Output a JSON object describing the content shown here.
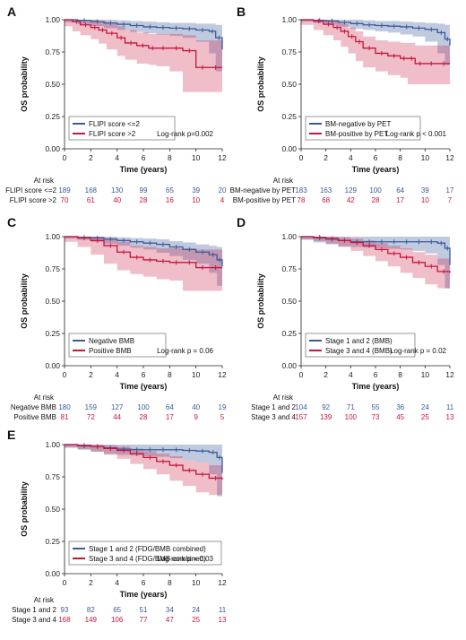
{
  "chart_data": [
    {
      "panel": "A",
      "type": "line",
      "xlabel": "Time (years)",
      "ylabel": "OS probability",
      "xlim": [
        0,
        12
      ],
      "ylim": [
        0,
        1.0
      ],
      "xticks": [
        "0",
        "2",
        "4",
        "6",
        "8",
        "10",
        "12"
      ],
      "yticks": [
        "0.00",
        "0.25",
        "0.50",
        "0.75",
        "1.00"
      ],
      "legend_placement": "bottom-left",
      "annotation": "Log-rank p=0.002",
      "series": [
        {
          "name": "FLIPI score <=2",
          "color": "#3b5a9a",
          "x": [
            0,
            1.0,
            2.0,
            3.0,
            4.0,
            5.0,
            6.0,
            7.0,
            8.0,
            9.0,
            10.0,
            11.0,
            11.5,
            12.0
          ],
          "y": [
            1.0,
            0.995,
            0.985,
            0.975,
            0.965,
            0.955,
            0.945,
            0.94,
            0.935,
            0.93,
            0.92,
            0.91,
            0.86,
            0.77
          ],
          "lower": [
            1.0,
            0.98,
            0.965,
            0.95,
            0.935,
            0.92,
            0.905,
            0.895,
            0.885,
            0.875,
            0.86,
            0.83,
            0.74,
            0.6
          ],
          "upper": [
            1.0,
            1.0,
            1.0,
            1.0,
            0.995,
            0.99,
            0.985,
            0.98,
            0.975,
            0.975,
            0.97,
            0.97,
            0.96,
            0.94
          ]
        },
        {
          "name": "FLIPI score >2",
          "color": "#c8143c",
          "x": [
            0,
            0.6,
            1.2,
            2.0,
            2.6,
            3.2,
            4.0,
            4.6,
            5.5,
            6.4,
            7.0,
            8.0,
            9.0,
            10.0,
            11.0,
            12.0
          ],
          "y": [
            1.0,
            0.985,
            0.96,
            0.94,
            0.92,
            0.895,
            0.86,
            0.82,
            0.8,
            0.78,
            0.78,
            0.78,
            0.76,
            0.63,
            0.63,
            0.63
          ],
          "lower": [
            1.0,
            0.95,
            0.91,
            0.88,
            0.85,
            0.815,
            0.77,
            0.72,
            0.69,
            0.66,
            0.65,
            0.64,
            0.6,
            0.44,
            0.44,
            0.44
          ],
          "upper": [
            1.0,
            1.0,
            1.0,
            1.0,
            0.99,
            0.975,
            0.95,
            0.92,
            0.9,
            0.89,
            0.89,
            0.89,
            0.88,
            0.84,
            0.84,
            0.84
          ]
        }
      ],
      "at_risk": {
        "header": "At risk",
        "rows": [
          {
            "label": "FLIPI score <=2",
            "values": [
              "189",
              "168",
              "130",
              "99",
              "65",
              "39",
              "20"
            ]
          },
          {
            "label": "FLIPI score >2",
            "values": [
              "70",
              "61",
              "40",
              "28",
              "16",
              "10",
              "4"
            ]
          }
        ]
      }
    },
    {
      "panel": "B",
      "type": "line",
      "xlabel": "Time (years)",
      "ylabel": "OS probability",
      "xlim": [
        0,
        12
      ],
      "ylim": [
        0,
        1.0
      ],
      "xticks": [
        "0",
        "2",
        "4",
        "6",
        "8",
        "10",
        "12"
      ],
      "yticks": [
        "0.00",
        "0.25",
        "0.50",
        "0.75",
        "1.00"
      ],
      "legend_placement": "bottom-left",
      "annotation": "Log-rank p < 0.001",
      "series": [
        {
          "name": "BM-negative by PET",
          "color": "#3b5a9a",
          "x": [
            0,
            1.0,
            2.0,
            3.0,
            4.0,
            5.0,
            6.0,
            7.0,
            8.0,
            9.0,
            10.0,
            11.0,
            11.6,
            12.0
          ],
          "y": [
            1.0,
            0.995,
            0.99,
            0.98,
            0.97,
            0.96,
            0.955,
            0.95,
            0.945,
            0.935,
            0.925,
            0.9,
            0.85,
            0.8
          ],
          "lower": [
            1.0,
            0.985,
            0.975,
            0.96,
            0.945,
            0.93,
            0.92,
            0.91,
            0.9,
            0.885,
            0.87,
            0.83,
            0.74,
            0.65
          ],
          "upper": [
            1.0,
            1.0,
            1.0,
            1.0,
            1.0,
            0.995,
            0.99,
            0.99,
            0.985,
            0.98,
            0.975,
            0.97,
            0.96,
            0.95
          ]
        },
        {
          "name": "BM-positive by PET",
          "color": "#c8143c",
          "x": [
            0,
            1.0,
            1.8,
            2.6,
            3.2,
            3.8,
            4.4,
            5.0,
            6.0,
            7.0,
            8.0,
            8.6,
            9.2,
            10.0,
            11.0,
            12.0
          ],
          "y": [
            1.0,
            0.99,
            0.965,
            0.94,
            0.91,
            0.87,
            0.83,
            0.78,
            0.74,
            0.72,
            0.7,
            0.7,
            0.66,
            0.66,
            0.66,
            0.66
          ],
          "lower": [
            1.0,
            0.96,
            0.92,
            0.88,
            0.84,
            0.79,
            0.74,
            0.68,
            0.63,
            0.6,
            0.57,
            0.55,
            0.5,
            0.5,
            0.5,
            0.5
          ],
          "upper": [
            1.0,
            1.0,
            1.0,
            0.99,
            0.97,
            0.94,
            0.91,
            0.87,
            0.84,
            0.83,
            0.82,
            0.82,
            0.8,
            0.8,
            0.8,
            0.8
          ]
        }
      ],
      "at_risk": {
        "header": "At risk",
        "rows": [
          {
            "label": "BM-negative by PET",
            "values": [
              "183",
              "163",
              "129",
              "100",
              "64",
              "39",
              "17"
            ]
          },
          {
            "label": "BM-positive by PET",
            "values": [
              "78",
              "68",
              "42",
              "28",
              "17",
              "10",
              "7"
            ]
          }
        ]
      }
    },
    {
      "panel": "C",
      "type": "line",
      "xlabel": "Time (years)",
      "ylabel": "OS probability",
      "xlim": [
        0,
        12
      ],
      "ylim": [
        0,
        1.0
      ],
      "xticks": [
        "0",
        "2",
        "4",
        "6",
        "8",
        "10",
        "12"
      ],
      "yticks": [
        "0.00",
        "0.25",
        "0.50",
        "0.75",
        "1.00"
      ],
      "legend_placement": "bottom-left",
      "annotation": "Log-rank p = 0.06",
      "series": [
        {
          "name": "Negative BMB",
          "color": "#3b5a9a",
          "x": [
            0,
            1.0,
            2.0,
            3.0,
            4.0,
            5.0,
            6.0,
            7.0,
            8.0,
            9.0,
            10.0,
            11.0,
            11.6,
            12.0
          ],
          "y": [
            1.0,
            0.995,
            0.99,
            0.98,
            0.97,
            0.96,
            0.95,
            0.94,
            0.92,
            0.9,
            0.88,
            0.86,
            0.82,
            0.77
          ],
          "lower": [
            1.0,
            0.985,
            0.975,
            0.96,
            0.945,
            0.93,
            0.915,
            0.9,
            0.875,
            0.85,
            0.82,
            0.79,
            0.72,
            0.62
          ],
          "upper": [
            1.0,
            1.0,
            1.0,
            1.0,
            0.995,
            0.99,
            0.985,
            0.98,
            0.965,
            0.955,
            0.94,
            0.93,
            0.92,
            0.92
          ]
        },
        {
          "name": "Positive BMB",
          "color": "#c8143c",
          "x": [
            0,
            1.0,
            2.0,
            3.0,
            4.0,
            5.0,
            6.0,
            7.0,
            8.0,
            9.0,
            10.0,
            11.0,
            12.0
          ],
          "y": [
            1.0,
            0.99,
            0.97,
            0.93,
            0.88,
            0.84,
            0.82,
            0.81,
            0.8,
            0.8,
            0.76,
            0.76,
            0.76
          ],
          "lower": [
            1.0,
            0.96,
            0.92,
            0.86,
            0.79,
            0.74,
            0.71,
            0.69,
            0.67,
            0.66,
            0.58,
            0.58,
            0.58
          ],
          "upper": [
            1.0,
            1.0,
            1.0,
            0.99,
            0.96,
            0.93,
            0.92,
            0.91,
            0.91,
            0.91,
            0.9,
            0.9,
            0.9
          ]
        }
      ],
      "at_risk": {
        "header": "At risk",
        "rows": [
          {
            "label": "Negative BMB",
            "values": [
              "180",
              "159",
              "127",
              "100",
              "64",
              "40",
              "19"
            ]
          },
          {
            "label": "Positive BMB",
            "values": [
              "81",
              "72",
              "44",
              "28",
              "17",
              "9",
              "5"
            ]
          }
        ]
      }
    },
    {
      "panel": "D",
      "type": "line",
      "xlabel": "Time (years)",
      "ylabel": "OS probability",
      "xlim": [
        0,
        12
      ],
      "ylim": [
        0,
        1.0
      ],
      "xticks": [
        "0",
        "2",
        "4",
        "6",
        "8",
        "10",
        "12"
      ],
      "yticks": [
        "0.00",
        "0.25",
        "0.50",
        "0.75",
        "1.00"
      ],
      "legend_placement": "bottom-left",
      "annotation": "Log-rank p = 0.02",
      "series": [
        {
          "name": "Stage 1 and 2 (BMB)",
          "color": "#3b5a9a",
          "x": [
            0,
            1.0,
            2.0,
            3.0,
            4.0,
            5.0,
            6.0,
            7.0,
            8.0,
            9.0,
            10.0,
            11.0,
            11.6,
            12.0
          ],
          "y": [
            1.0,
            0.99,
            0.98,
            0.97,
            0.96,
            0.96,
            0.96,
            0.96,
            0.96,
            0.96,
            0.96,
            0.95,
            0.91,
            0.78
          ],
          "lower": [
            1.0,
            0.975,
            0.955,
            0.94,
            0.925,
            0.92,
            0.915,
            0.91,
            0.905,
            0.9,
            0.89,
            0.87,
            0.78,
            0.6
          ],
          "upper": [
            1.0,
            1.0,
            1.0,
            1.0,
            1.0,
            1.0,
            1.0,
            1.0,
            1.0,
            1.0,
            1.0,
            1.0,
            1.0,
            0.96
          ]
        },
        {
          "name": "Stage 3 and 4 (BMB)",
          "color": "#c8143c",
          "x": [
            0,
            1.0,
            2.0,
            3.0,
            4.0,
            5.0,
            6.0,
            7.0,
            8.0,
            9.0,
            10.0,
            11.0,
            12.0
          ],
          "y": [
            1.0,
            0.995,
            0.985,
            0.97,
            0.955,
            0.93,
            0.9,
            0.87,
            0.84,
            0.8,
            0.77,
            0.73,
            0.72
          ],
          "lower": [
            1.0,
            0.98,
            0.965,
            0.945,
            0.92,
            0.89,
            0.85,
            0.81,
            0.77,
            0.72,
            0.68,
            0.63,
            0.6
          ],
          "upper": [
            1.0,
            1.0,
            1.0,
            0.995,
            0.985,
            0.97,
            0.95,
            0.93,
            0.91,
            0.88,
            0.86,
            0.83,
            0.82
          ]
        }
      ],
      "at_risk": {
        "header": "At risk",
        "rows": [
          {
            "label": "Stage 1 and 2",
            "values": [
              "104",
              "92",
              "71",
              "55",
              "36",
              "24",
              "11"
            ]
          },
          {
            "label": "Stage 3 and 4",
            "values": [
              "157",
              "139",
              "100",
              "73",
              "45",
              "25",
              "13"
            ]
          }
        ]
      }
    },
    {
      "panel": "E",
      "type": "line",
      "xlabel": "Time (years)",
      "ylabel": "OS probability",
      "xlim": [
        0,
        12
      ],
      "ylim": [
        0,
        1.0
      ],
      "xticks": [
        "0",
        "2",
        "4",
        "6",
        "8",
        "10",
        "12"
      ],
      "yticks": [
        "0.00",
        "0.25",
        "0.50",
        "0.75",
        "1.00"
      ],
      "legend_placement": "bottom-left",
      "annotation": "Log-rank p = 0.03",
      "series": [
        {
          "name": "Stage 1 and 2 (FDG/BMB combined)",
          "color": "#3b5a9a",
          "x": [
            0,
            1.0,
            2.0,
            3.0,
            4.0,
            5.0,
            6.0,
            7.0,
            8.0,
            9.0,
            10.0,
            11.0,
            11.6,
            12.0
          ],
          "y": [
            1.0,
            0.99,
            0.985,
            0.975,
            0.965,
            0.96,
            0.96,
            0.96,
            0.96,
            0.955,
            0.95,
            0.94,
            0.9,
            0.78
          ],
          "lower": [
            1.0,
            0.975,
            0.96,
            0.945,
            0.93,
            0.92,
            0.915,
            0.91,
            0.905,
            0.895,
            0.88,
            0.86,
            0.77,
            0.6
          ],
          "upper": [
            1.0,
            1.0,
            1.0,
            1.0,
            1.0,
            1.0,
            1.0,
            1.0,
            1.0,
            1.0,
            1.0,
            1.0,
            1.0,
            0.96
          ]
        },
        {
          "name": "Stage 3 and 4 (FDG/BMB combined)",
          "color": "#c8143c",
          "x": [
            0,
            1.0,
            2.0,
            3.0,
            4.0,
            5.0,
            6.0,
            7.0,
            8.0,
            9.0,
            10.0,
            11.0,
            12.0
          ],
          "y": [
            1.0,
            0.995,
            0.985,
            0.97,
            0.955,
            0.93,
            0.9,
            0.87,
            0.84,
            0.8,
            0.77,
            0.74,
            0.73
          ],
          "lower": [
            1.0,
            0.98,
            0.965,
            0.945,
            0.92,
            0.89,
            0.85,
            0.81,
            0.77,
            0.72,
            0.68,
            0.63,
            0.61
          ],
          "upper": [
            1.0,
            1.0,
            1.0,
            0.995,
            0.985,
            0.97,
            0.95,
            0.93,
            0.91,
            0.88,
            0.86,
            0.84,
            0.83
          ]
        }
      ],
      "at_risk": {
        "header": "At risk",
        "rows": [
          {
            "label": "Stage 1 and 2",
            "values": [
              "93",
              "82",
              "65",
              "51",
              "34",
              "24",
              "11"
            ]
          },
          {
            "label": "Stage 3 and 4",
            "values": [
              "168",
              "149",
              "106",
              "77",
              "47",
              "25",
              "13"
            ]
          }
        ]
      }
    }
  ]
}
